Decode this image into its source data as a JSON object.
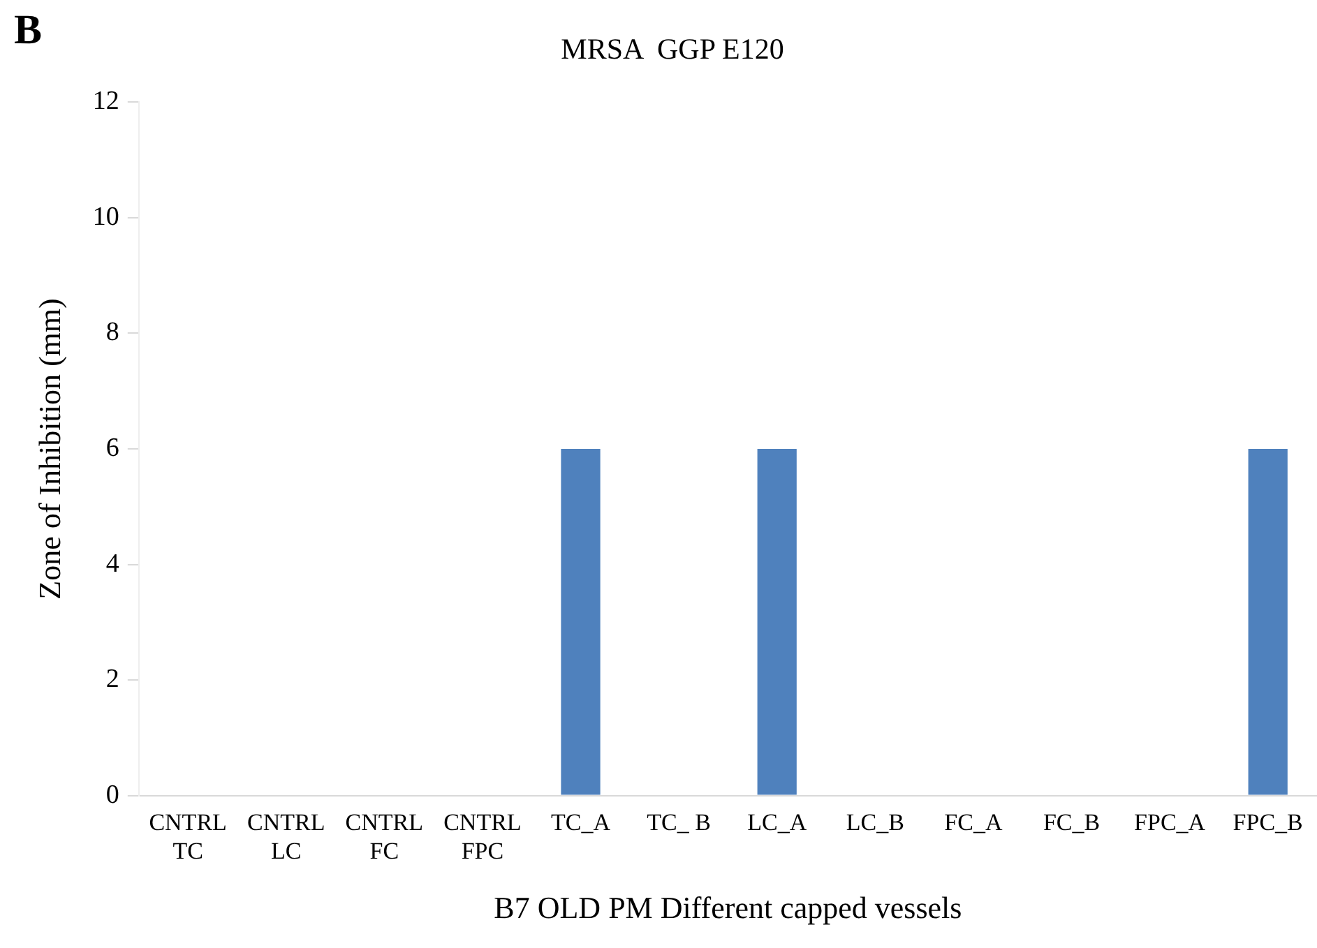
{
  "chart_data": {
    "type": "bar",
    "title": "MRSA  GGP E120",
    "xlabel": "B7 OLD PM Different capped vessels",
    "ylabel": "Zone of Inhibition (mm)",
    "annotations": [
      "B"
    ],
    "categories": [
      "CNTRL\nTC",
      "CNTRL\nLC",
      "CNTRL\nFC",
      "CNTRL\nFPC",
      "TC_A",
      "TC_ B",
      "LC_A",
      "LC_B",
      "FC_A",
      "FC_B",
      "FPC_A",
      "FPC_B"
    ],
    "values": [
      0,
      0,
      0,
      0,
      6,
      0,
      6,
      0,
      0,
      0,
      0,
      6
    ],
    "color": "#4f81bd",
    "ylim": [
      0,
      12
    ],
    "yticks": [
      0,
      2,
      4,
      6,
      8,
      10,
      12
    ],
    "grid": false,
    "legend": false
  }
}
